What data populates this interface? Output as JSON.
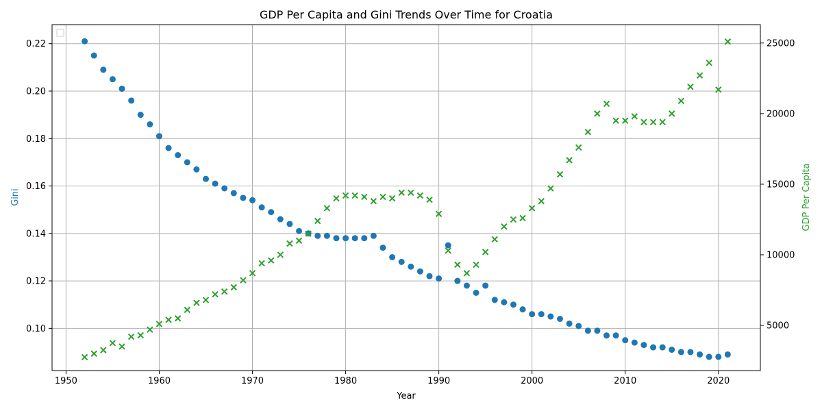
{
  "chart_data": {
    "type": "scatter",
    "title": "GDP Per Capita and Gini Trends Over Time for Croatia",
    "xlabel": "Year",
    "ylabel_left": "Gini",
    "ylabel_right": "GDP Per Capita",
    "xlim": [
      1948.5,
      2024.5
    ],
    "ylim_left": [
      0.0822,
      0.228
    ],
    "ylim_right": [
      1800,
      26300
    ],
    "xticks": [
      1950,
      1960,
      1970,
      1980,
      1990,
      2000,
      2010,
      2020
    ],
    "yticks_left": [
      0.1,
      0.12,
      0.14,
      0.16,
      0.18,
      0.2,
      0.22
    ],
    "yticks_left_labels": [
      "0.10",
      "0.12",
      "0.14",
      "0.16",
      "0.18",
      "0.20",
      "0.22"
    ],
    "yticks_right": [
      5000,
      10000,
      15000,
      20000,
      25000
    ],
    "yticks_right_labels": [
      "5000",
      "10000",
      "15000",
      "20000",
      "25000"
    ],
    "grid": true,
    "legend": "top-left (empty)",
    "colors": {
      "gini": "#1f77b4",
      "gdp": "#2ca02c"
    },
    "x": [
      1952,
      1953,
      1954,
      1955,
      1956,
      1957,
      1958,
      1959,
      1960,
      1961,
      1962,
      1963,
      1964,
      1965,
      1966,
      1967,
      1968,
      1969,
      1970,
      1971,
      1972,
      1973,
      1974,
      1975,
      1976,
      1977,
      1978,
      1979,
      1980,
      1981,
      1982,
      1983,
      1984,
      1985,
      1986,
      1987,
      1988,
      1989,
      1990,
      1991,
      1992,
      1993,
      1994,
      1995,
      1996,
      1997,
      1998,
      1999,
      2000,
      2001,
      2002,
      2003,
      2004,
      2005,
      2006,
      2007,
      2008,
      2009,
      2010,
      2011,
      2012,
      2013,
      2014,
      2015,
      2016,
      2017,
      2018,
      2019,
      2020,
      2021
    ],
    "series": [
      {
        "name": "Gini",
        "axis": "left",
        "marker": "circle",
        "values": [
          0.221,
          0.215,
          0.209,
          0.205,
          0.201,
          0.196,
          0.19,
          0.186,
          0.181,
          0.176,
          0.173,
          0.17,
          0.167,
          0.163,
          0.161,
          0.159,
          0.157,
          0.155,
          0.154,
          0.151,
          0.149,
          0.146,
          0.144,
          0.141,
          0.14,
          0.139,
          0.139,
          0.138,
          0.138,
          0.138,
          0.138,
          0.139,
          0.134,
          0.13,
          0.128,
          0.126,
          0.124,
          0.122,
          0.121,
          0.135,
          0.12,
          0.118,
          0.115,
          0.118,
          0.112,
          0.111,
          0.11,
          0.108,
          0.106,
          0.106,
          0.105,
          0.104,
          0.102,
          0.101,
          0.099,
          0.099,
          0.097,
          0.097,
          0.095,
          0.094,
          0.093,
          0.092,
          0.092,
          0.091,
          0.09,
          0.09,
          0.089,
          0.088,
          0.088,
          0.089
        ]
      },
      {
        "name": "GDP Per Capita",
        "axis": "right",
        "marker": "x",
        "values": [
          2750,
          3000,
          3250,
          3750,
          3500,
          4200,
          4300,
          4700,
          5100,
          5400,
          5500,
          6100,
          6600,
          6800,
          7200,
          7400,
          7700,
          8200,
          8700,
          9400,
          9600,
          10000,
          10800,
          11000,
          11500,
          12400,
          13300,
          14000,
          14200,
          14200,
          14100,
          13800,
          14100,
          14000,
          14400,
          14400,
          14200,
          13900,
          12900,
          10300,
          9300,
          8700,
          9300,
          10200,
          11100,
          12000,
          12500,
          12600,
          13300,
          13800,
          14700,
          15700,
          16700,
          17600,
          18700,
          20000,
          20700,
          19500,
          19500,
          19800,
          19400,
          19400,
          19400,
          20000,
          20900,
          21900,
          22700,
          23600,
          21700,
          25100
        ]
      }
    ]
  }
}
